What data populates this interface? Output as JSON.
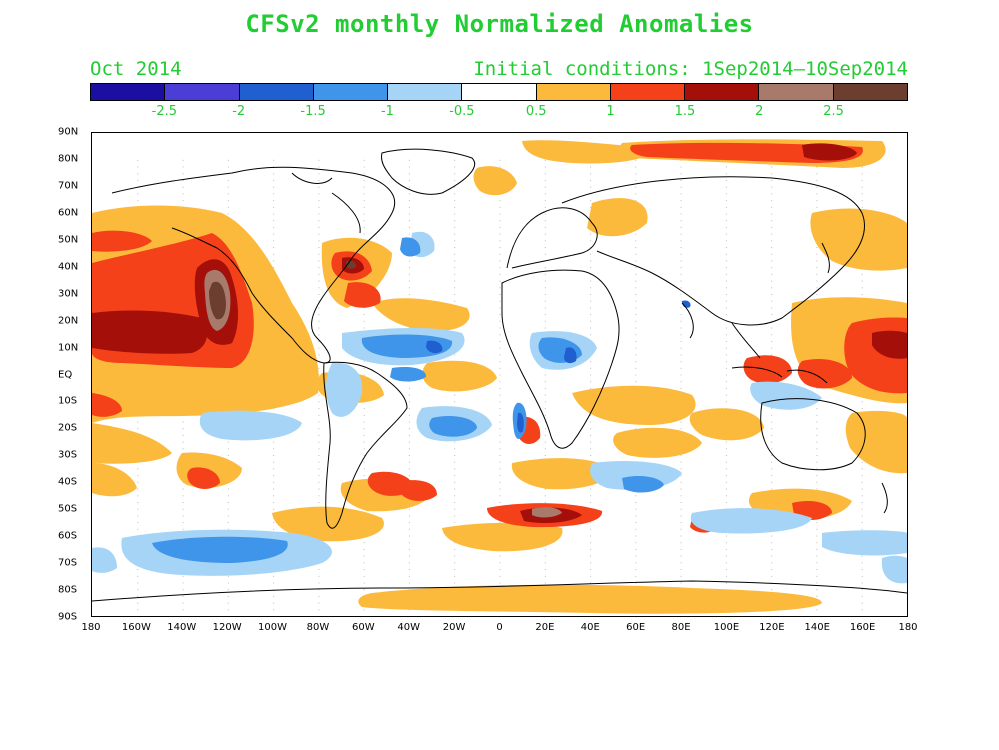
{
  "title": "CFSv2 monthly Normalized Anomalies",
  "month_label": "Oct 2014",
  "initial_conditions": "Initial conditions: 1Sep2014—10Sep2014",
  "colorbar": {
    "colors": [
      "#1a0fa0",
      "#4a3ed6",
      "#1f5fd0",
      "#3f95ea",
      "#a6d4f7",
      "#ffffff",
      "#fcba3c",
      "#f5411a",
      "#a40f0a",
      "#a77a6c",
      "#6b3e2f"
    ],
    "tick_labels": [
      "-2.5",
      "-2",
      "-1.5",
      "-1",
      "-0.5",
      "0.5",
      "1",
      "1.5",
      "2",
      "2.5"
    ]
  },
  "axes": {
    "lat_labels": [
      "90N",
      "80N",
      "70N",
      "60N",
      "50N",
      "40N",
      "30N",
      "20N",
      "10N",
      "EQ",
      "10S",
      "20S",
      "30S",
      "40S",
      "50S",
      "60S",
      "70S",
      "80S",
      "90S"
    ],
    "lon_labels": [
      "180",
      "160W",
      "140W",
      "120W",
      "100W",
      "80W",
      "60W",
      "40W",
      "20W",
      "0",
      "20E",
      "40E",
      "60E",
      "80E",
      "100E",
      "120E",
      "140E",
      "160E",
      "180"
    ]
  },
  "anomaly_colors": {
    "pos1": "#fcba3c",
    "pos2": "#f5411a",
    "pos3": "#a40f0a",
    "pos4": "#a77a6c",
    "pos5": "#6b3e2f",
    "neg1": "#a6d4f7",
    "neg2": "#3f95ea",
    "neg3": "#1f5fd0",
    "neg4": "#4a3ed6",
    "neg5": "#1a0fa0"
  },
  "coastline_color": "#000000",
  "grid_color": "#bbbbbb"
}
